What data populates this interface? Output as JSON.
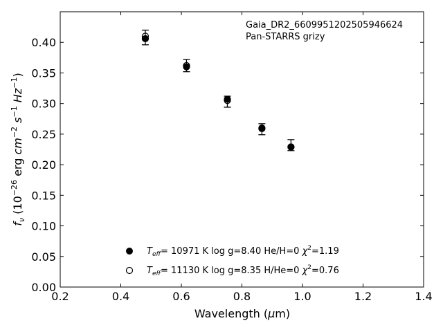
{
  "chart_data": {
    "type": "scatter",
    "annotation_lines": [
      "Gaia_DR2_6609951202505946624",
      "Pan-STARRS grizy"
    ],
    "xlabel": "Wavelength (μm)",
    "ylabel": "f_ν (10^-26 erg cm^-2 s^-1 Hz^-1)",
    "xlim": [
      0.2,
      1.4
    ],
    "ylim": [
      0.0,
      0.45
    ],
    "xticks": [
      0.2,
      0.4,
      0.6,
      0.8,
      1.0,
      1.2,
      1.4
    ],
    "yticks": [
      0.0,
      0.05,
      0.1,
      0.15,
      0.2,
      0.25,
      0.3,
      0.35,
      0.4
    ],
    "xtick_labels": [
      "0.2",
      "0.4",
      "0.6",
      "0.8",
      "1.0",
      "1.2",
      "1.4"
    ],
    "ytick_labels": [
      "0.00",
      "0.05",
      "0.10",
      "0.15",
      "0.20",
      "0.25",
      "0.30",
      "0.35",
      "0.40"
    ],
    "grid": false,
    "legend_position": "lower-center",
    "observed": {
      "x": [
        0.481,
        0.617,
        0.752,
        0.866,
        0.962
      ],
      "y": [
        0.408,
        0.362,
        0.303,
        0.258,
        0.232
      ],
      "yerr": [
        0.012,
        0.01,
        0.009,
        0.009,
        0.009
      ]
    },
    "series": [
      {
        "name": "T_eff= 10971 K  log g=8.40  He/H=0  χ²=1.19",
        "marker": "filled",
        "x": [
          0.481,
          0.617,
          0.752,
          0.866,
          0.962
        ],
        "y": [
          0.406,
          0.36,
          0.307,
          0.26,
          0.229
        ]
      },
      {
        "name": "T_eff= 11130 K  log g=8.35  H/He=0  χ²=0.76",
        "marker": "open",
        "x": [
          0.481,
          0.617,
          0.752,
          0.866,
          0.962
        ],
        "y": [
          0.41,
          0.362,
          0.305,
          0.259,
          0.229
        ]
      }
    ],
    "legend_entries": [
      {
        "marker": "filled",
        "temp": "= 10971 K  log g=8.40  He/H=0  ",
        "chi": "=1.19"
      },
      {
        "marker": "open",
        "temp": "= 11130 K  log g=8.35  H/He=0  ",
        "chi": "=0.76"
      }
    ],
    "colors": {
      "marker": "#000000",
      "axes": "#000000",
      "background": "#ffffff"
    }
  }
}
